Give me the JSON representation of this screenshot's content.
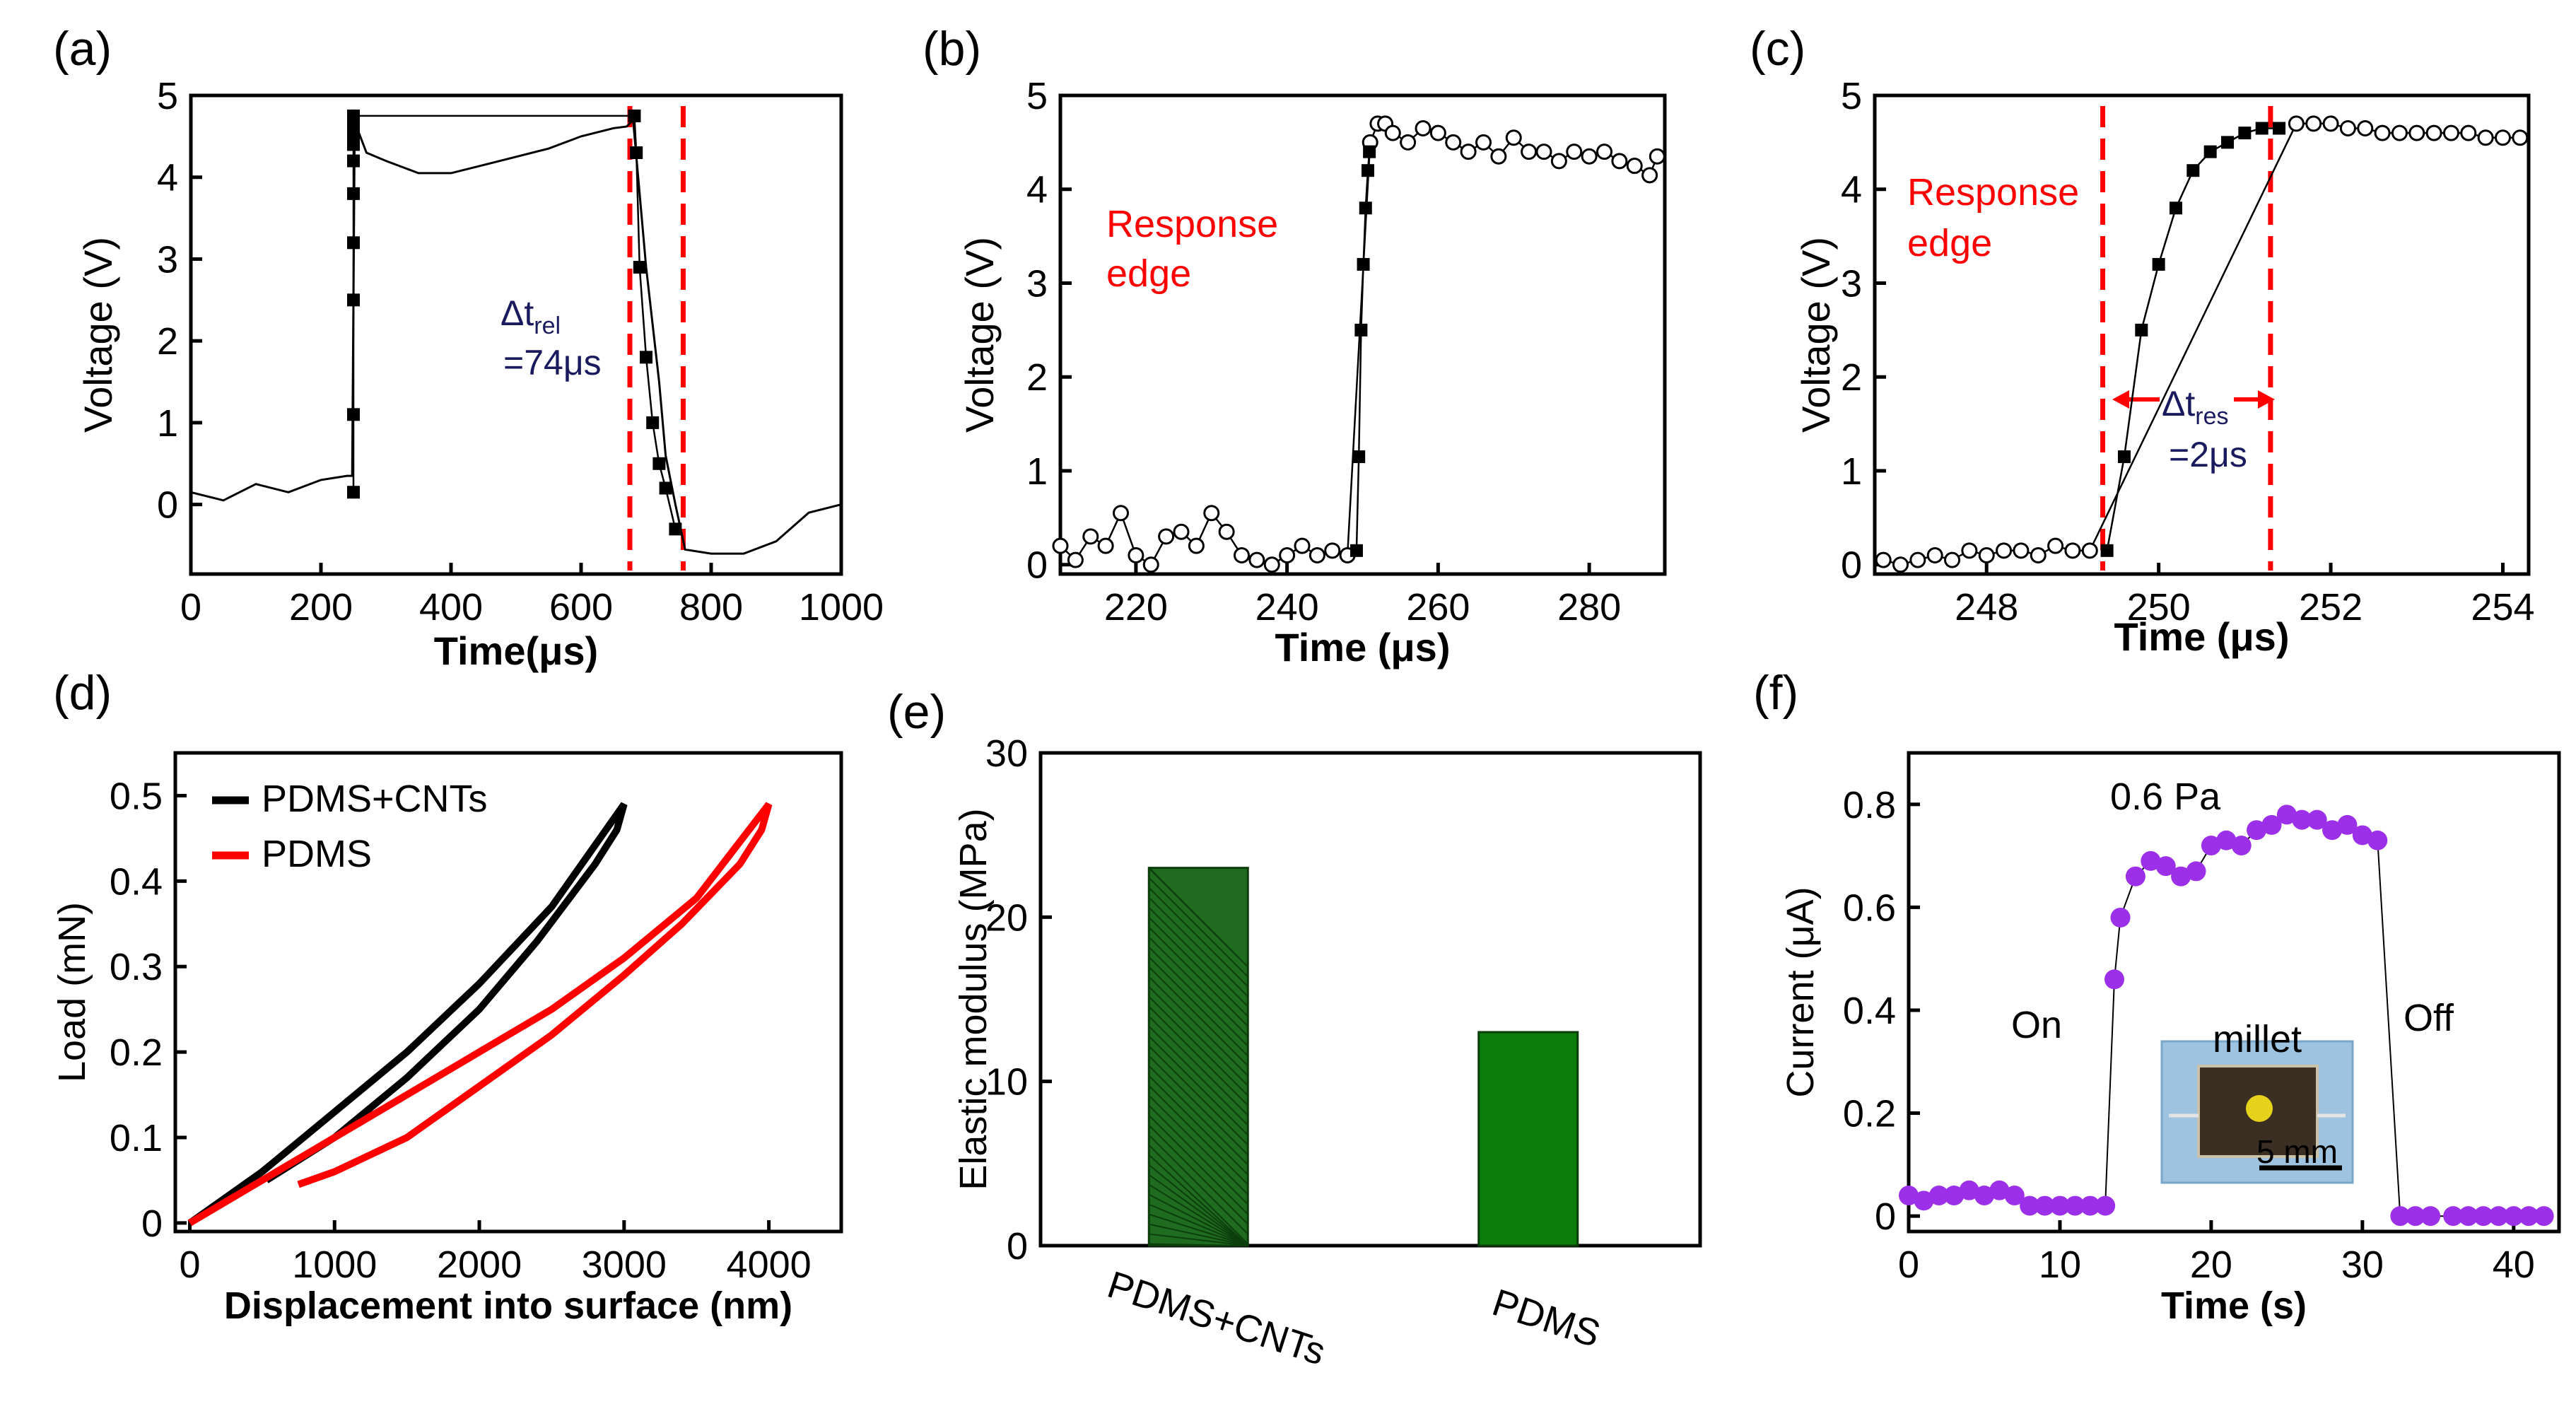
{
  "figure": {
    "panel_labels": [
      "(a)",
      "(b)",
      "(c)",
      "(d)",
      "(e)",
      "(f)"
    ]
  },
  "chart_data": [
    {
      "panel": "(a)",
      "type": "line",
      "xlabel": "Time(μs)",
      "ylabel": "Voltage (V)",
      "xlim": [
        0,
        1000
      ],
      "ylim": [
        -0.85,
        5
      ],
      "xticks": [
        0,
        200,
        400,
        600,
        800,
        1000
      ],
      "yticks": [
        0,
        1,
        2,
        3,
        4,
        5
      ],
      "series": [
        {
          "name": "noisy trace",
          "style": "line",
          "color": "#000000",
          "x": [
            0,
            50,
            100,
            150,
            200,
            240,
            248,
            250,
            252,
            258,
            270,
            300,
            350,
            400,
            450,
            500,
            550,
            600,
            650,
            670,
            680,
            690,
            700,
            710,
            720,
            730,
            745,
            760,
            800,
            850,
            900,
            950,
            1000
          ],
          "y": [
            0.15,
            0.05,
            0.25,
            0.15,
            0.3,
            0.35,
            0.35,
            2.5,
            4.75,
            4.55,
            4.3,
            4.2,
            4.05,
            4.05,
            4.15,
            4.25,
            4.35,
            4.5,
            4.6,
            4.62,
            4.7,
            3.8,
            2.9,
            2.2,
            1.5,
            0.6,
            0.0,
            -0.55,
            -0.6,
            -0.6,
            -0.45,
            -0.1,
            0.0
          ]
        },
        {
          "name": "squares",
          "style": "square",
          "color": "#000000",
          "x": [
            250,
            250,
            250,
            250,
            250,
            250,
            250,
            250,
            250,
            250,
            250,
            682,
            685,
            690,
            700,
            710,
            720,
            730,
            745
          ],
          "y": [
            0.15,
            1.1,
            2.5,
            3.2,
            3.8,
            4.2,
            4.4,
            4.5,
            4.6,
            4.7,
            4.75,
            4.75,
            4.3,
            2.9,
            1.8,
            1.0,
            0.5,
            0.2,
            -0.3
          ]
        }
      ],
      "annotations": {
        "line1": "Δt",
        "sub": "rel",
        "line2": "=74μs"
      },
      "vlines": [
        675,
        757
      ]
    },
    {
      "panel": "(b)",
      "type": "scatter",
      "xlabel": "Time (μs)",
      "ylabel": "Voltage (V)",
      "xlim": [
        210,
        290
      ],
      "ylim": [
        -0.1,
        5
      ],
      "xticks": [
        220,
        240,
        260,
        280
      ],
      "yticks": [
        0,
        1,
        2,
        3,
        4,
        5
      ],
      "series": [
        {
          "name": "circles",
          "style": "circle",
          "color": "#000000",
          "x": [
            210,
            212,
            214,
            216,
            218,
            220,
            222,
            224,
            226,
            228,
            230,
            232,
            234,
            236,
            238,
            240,
            242,
            244,
            246,
            248,
            251,
            252,
            253,
            254,
            256,
            258,
            260,
            262,
            264,
            266,
            268,
            270,
            272,
            274,
            276,
            278,
            280,
            282,
            284,
            286,
            288,
            289
          ],
          "y": [
            0.2,
            0.05,
            0.3,
            0.2,
            0.55,
            0.1,
            0.0,
            0.3,
            0.35,
            0.2,
            0.55,
            0.35,
            0.1,
            0.05,
            0.0,
            0.1,
            0.2,
            0.1,
            0.15,
            0.1,
            4.5,
            4.7,
            4.7,
            4.6,
            4.5,
            4.65,
            4.6,
            4.5,
            4.4,
            4.5,
            4.35,
            4.55,
            4.4,
            4.4,
            4.3,
            4.4,
            4.35,
            4.4,
            4.3,
            4.25,
            4.15,
            4.35
          ]
        },
        {
          "name": "squares",
          "style": "square",
          "color": "#000000",
          "x": [
            249.2,
            249.5,
            249.8,
            250.1,
            250.4,
            250.7,
            250.9
          ],
          "y": [
            0.15,
            1.15,
            2.5,
            3.2,
            3.8,
            4.2,
            4.4
          ]
        }
      ],
      "annotations": {
        "line1": "Response",
        "line2": "edge"
      }
    },
    {
      "panel": "(c)",
      "type": "scatter",
      "xlabel": "Time (μs)",
      "ylabel": "Voltage (V)",
      "xlim": [
        246.7,
        254.3
      ],
      "ylim": [
        -0.1,
        5
      ],
      "xticks": [
        248,
        250,
        252,
        254
      ],
      "yticks": [
        0,
        1,
        2,
        3,
        4,
        5
      ],
      "series": [
        {
          "name": "circles",
          "style": "circle",
          "color": "#000000",
          "x": [
            246.8,
            247.0,
            247.2,
            247.4,
            247.6,
            247.8,
            248.0,
            248.2,
            248.4,
            248.6,
            248.8,
            249.0,
            249.2,
            251.6,
            251.8,
            252.0,
            252.2,
            252.4,
            252.6,
            252.8,
            253.0,
            253.2,
            253.4,
            253.6,
            253.8,
            254.0,
            254.2
          ],
          "y": [
            0.05,
            0.0,
            0.05,
            0.1,
            0.05,
            0.15,
            0.1,
            0.15,
            0.15,
            0.1,
            0.2,
            0.15,
            0.15,
            4.7,
            4.7,
            4.7,
            4.65,
            4.65,
            4.6,
            4.6,
            4.6,
            4.6,
            4.6,
            4.6,
            4.55,
            4.55,
            4.55
          ]
        },
        {
          "name": "squares",
          "style": "square",
          "color": "#000000",
          "x": [
            249.4,
            249.6,
            249.8,
            250.0,
            250.2,
            250.4,
            250.6,
            250.8,
            251.0,
            251.2,
            251.4
          ],
          "y": [
            0.15,
            1.15,
            2.5,
            3.2,
            3.8,
            4.2,
            4.4,
            4.5,
            4.6,
            4.65,
            4.65
          ]
        }
      ],
      "annotations": {
        "line1": "Response",
        "line2": "edge",
        "dt1": "Δt",
        "dt_sub": "res",
        "dt2": "=2μs"
      },
      "vlines": [
        249.35,
        251.3
      ]
    },
    {
      "panel": "(d)",
      "type": "line",
      "xlabel": "Displacement into surface (nm)",
      "ylabel": "Load  (mN)",
      "xlim": [
        -100,
        4500
      ],
      "ylim": [
        -0.01,
        0.55
      ],
      "xticks": [
        0,
        1000,
        2000,
        3000,
        4000
      ],
      "yticks": [
        0.0,
        0.1,
        0.2,
        0.3,
        0.4,
        0.5
      ],
      "legend": [
        "PDMS+CNTs",
        "PDMS"
      ],
      "series": [
        {
          "name": "PDMS+CNTs",
          "color": "#000000",
          "x": [
            0,
            500,
            1000,
            1500,
            2000,
            2500,
            3000,
            2950,
            2800,
            2400,
            2000,
            1500,
            1000,
            530
          ],
          "y": [
            0.0,
            0.06,
            0.13,
            0.2,
            0.28,
            0.37,
            0.49,
            0.46,
            0.42,
            0.33,
            0.25,
            0.17,
            0.1,
            0.05
          ]
        },
        {
          "name": "PDMS",
          "color": "#ff0000",
          "x": [
            0,
            500,
            1000,
            1500,
            2000,
            2500,
            3000,
            3500,
            4000,
            3950,
            3800,
            3400,
            3000,
            2500,
            2000,
            1500,
            1000,
            750
          ],
          "y": [
            0.0,
            0.05,
            0.1,
            0.15,
            0.2,
            0.25,
            0.31,
            0.38,
            0.49,
            0.46,
            0.42,
            0.35,
            0.29,
            0.22,
            0.16,
            0.1,
            0.06,
            0.045
          ]
        }
      ]
    },
    {
      "panel": "(e)",
      "type": "bar",
      "xlabel": "",
      "ylabel": "Elastic modulus (MPa)",
      "ylim": [
        0,
        30
      ],
      "yticks": [
        0,
        10,
        20,
        30
      ],
      "categories": [
        "PDMS+CNTs",
        "PDMS"
      ],
      "values": [
        23,
        13
      ],
      "colors": [
        "#1f6b1f",
        "#0b7d0b"
      ]
    },
    {
      "panel": "(f)",
      "type": "scatter",
      "xlabel": "Time (s)",
      "ylabel": "Current (μA)",
      "xlim": [
        0,
        43
      ],
      "ylim": [
        -0.03,
        0.9
      ],
      "xticks": [
        0,
        10,
        20,
        30,
        40
      ],
      "yticks": [
        0,
        0.2,
        0.4,
        0.6,
        0.8
      ],
      "tick_labels": [
        "0",
        "0.2",
        "0.4",
        "0.6",
        "0.8"
      ],
      "series": [
        {
          "name": "current",
          "style": "circle",
          "color": "#9b30e8",
          "x": [
            0,
            1,
            2,
            3,
            4,
            5,
            6,
            7,
            8,
            9,
            10,
            11,
            12,
            13,
            13.6,
            14,
            15,
            16,
            17,
            18,
            19,
            20,
            21,
            22,
            23,
            24,
            25,
            26,
            27,
            28,
            29,
            30,
            31,
            32.5,
            33.5,
            34.5,
            36,
            37,
            38,
            39,
            40,
            41,
            42
          ],
          "y": [
            0.04,
            0.03,
            0.04,
            0.04,
            0.05,
            0.04,
            0.05,
            0.04,
            0.02,
            0.02,
            0.02,
            0.02,
            0.02,
            0.02,
            0.46,
            0.58,
            0.66,
            0.69,
            0.68,
            0.66,
            0.67,
            0.72,
            0.73,
            0.72,
            0.75,
            0.76,
            0.78,
            0.77,
            0.77,
            0.75,
            0.76,
            0.74,
            0.73,
            0.0,
            0.0,
            0.0,
            0.0,
            0.0,
            0.0,
            0.0,
            0.0,
            0.0,
            0.0
          ]
        }
      ],
      "annotations": {
        "pressure": "0.6 Pa",
        "on": "On",
        "off": "Off",
        "inset_label": "millet",
        "scale": "5 mm"
      }
    }
  ]
}
